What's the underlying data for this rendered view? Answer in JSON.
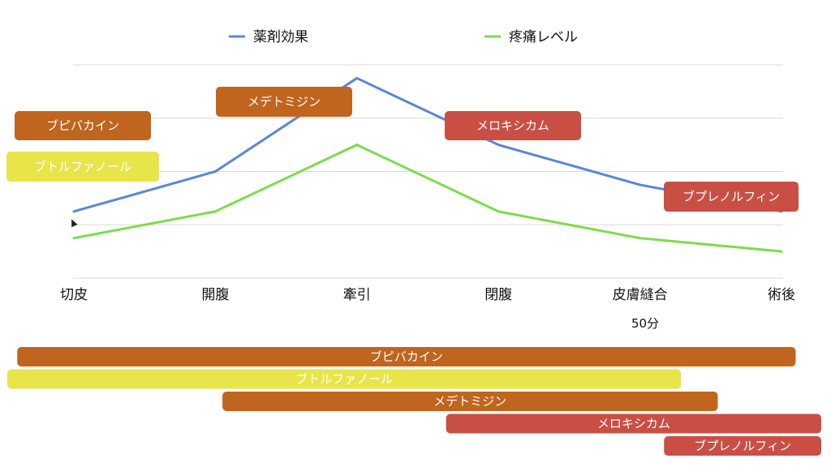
{
  "chart_data": {
    "type": "line",
    "title": "",
    "xlabel": "",
    "ylabel": "",
    "categories": [
      "切皮",
      "開腹",
      "牽引",
      "閉腹",
      "皮膚縫合",
      "術後"
    ],
    "ylim": [
      0,
      4
    ],
    "grid": true,
    "legend_position": "top",
    "series": [
      {
        "name": "薬剤効果",
        "color": "#5b86d6",
        "values": [
          1.25,
          2.0,
          3.75,
          2.5,
          1.75,
          1.25
        ]
      },
      {
        "name": "疼痛レベル",
        "color": "#7ddb4c",
        "values": [
          0.75,
          1.25,
          2.5,
          1.25,
          0.75,
          0.5
        ]
      }
    ],
    "annotations": [
      {
        "label": "ブピバカイン",
        "color": "#c0651e"
      },
      {
        "label": "ブトルファノール",
        "color": "#e7e54a"
      },
      {
        "label": "メデトミジン",
        "color": "#c0651e"
      },
      {
        "label": "メロキシカム",
        "color": "#c94f45"
      },
      {
        "label": "ブプレノルフィン",
        "color": "#c94f45"
      }
    ],
    "duration_label": "50分",
    "timeline_bars": [
      {
        "label": "ブピバカイン",
        "color": "#c0651e",
        "start": -0.4,
        "end": 5.1
      },
      {
        "label": "ブトルファノール",
        "color": "#e7e54a",
        "start": -0.47,
        "end": 4.29
      },
      {
        "label": "メデトミジン",
        "color": "#c0651e",
        "start": 1.05,
        "end": 4.55
      },
      {
        "label": "メロキシカム",
        "color": "#c94f45",
        "start": 2.63,
        "end": 5.3
      },
      {
        "label": "ブプレノルフィン",
        "color": "#c94f45",
        "start": 4.17,
        "end": 5.3
      }
    ]
  }
}
